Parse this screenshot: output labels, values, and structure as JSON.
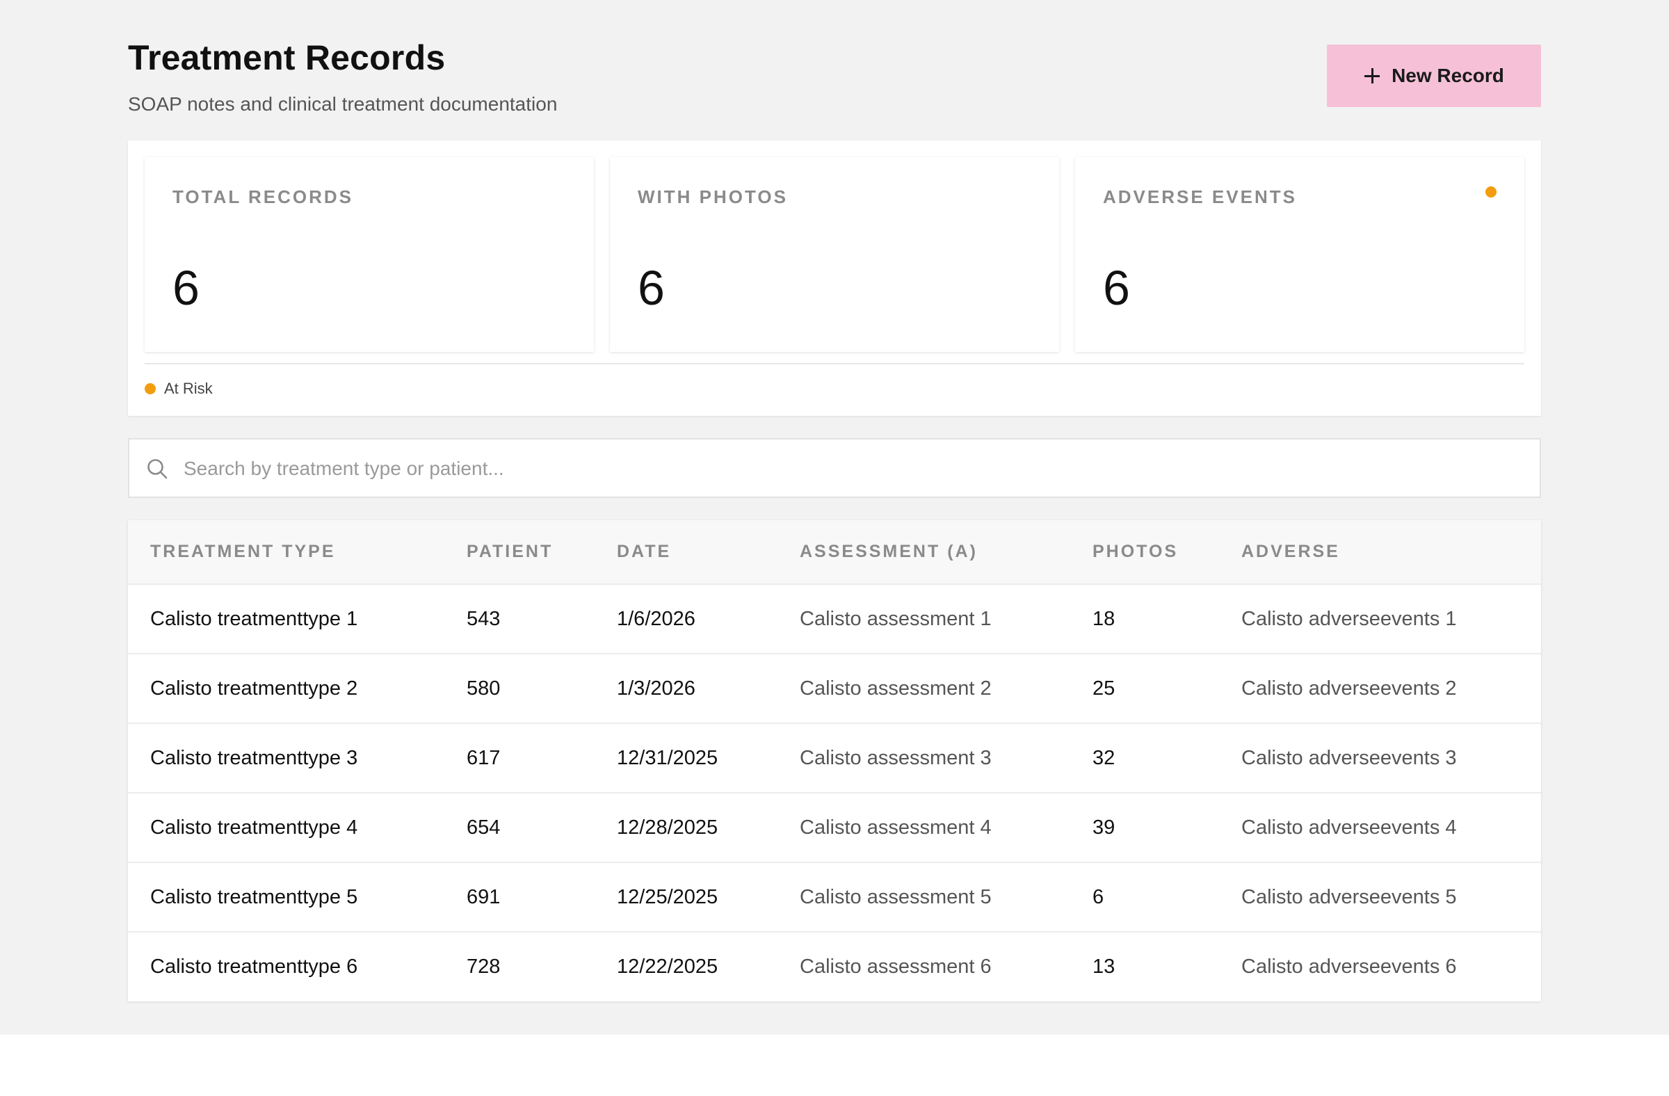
{
  "header": {
    "title": "Treatment Records",
    "subtitle": "SOAP notes and clinical treatment documentation",
    "new_record_label": "New Record"
  },
  "stats": [
    {
      "label": "TOTAL RECORDS",
      "value": "6"
    },
    {
      "label": "WITH PHOTOS",
      "value": "6"
    },
    {
      "label": "ADVERSE EVENTS",
      "value": "6",
      "status": "at-risk"
    }
  ],
  "legend": {
    "label": "At Risk",
    "color": "#f29d0e"
  },
  "search": {
    "placeholder": "Search by treatment type or patient...",
    "value": ""
  },
  "table": {
    "columns": [
      "TREATMENT TYPE",
      "PATIENT",
      "DATE",
      "ASSESSMENT (A)",
      "PHOTOS",
      "ADVERSE"
    ],
    "rows": [
      {
        "treatment_type": "Calisto treatmenttype 1",
        "patient": "543",
        "date": "1/6/2026",
        "assessment": "Calisto assessment 1",
        "photos": "18",
        "adverse": "Calisto adverseevents 1"
      },
      {
        "treatment_type": "Calisto treatmenttype 2",
        "patient": "580",
        "date": "1/3/2026",
        "assessment": "Calisto assessment 2",
        "photos": "25",
        "adverse": "Calisto adverseevents 2"
      },
      {
        "treatment_type": "Calisto treatmenttype 3",
        "patient": "617",
        "date": "12/31/2025",
        "assessment": "Calisto assessment 3",
        "photos": "32",
        "adverse": "Calisto adverseevents 3"
      },
      {
        "treatment_type": "Calisto treatmenttype 4",
        "patient": "654",
        "date": "12/28/2025",
        "assessment": "Calisto assessment 4",
        "photos": "39",
        "adverse": "Calisto adverseevents 4"
      },
      {
        "treatment_type": "Calisto treatmenttype 5",
        "patient": "691",
        "date": "12/25/2025",
        "assessment": "Calisto assessment 5",
        "photos": "6",
        "adverse": "Calisto adverseevents 5"
      },
      {
        "treatment_type": "Calisto treatmenttype 6",
        "patient": "728",
        "date": "12/22/2025",
        "assessment": "Calisto assessment 6",
        "photos": "13",
        "adverse": "Calisto adverseevents 6"
      }
    ]
  },
  "colors": {
    "accent": "#f6c1d6",
    "warning": "#f29d0e",
    "background": "#f2f2f2"
  },
  "icons": {
    "new_record": "plus-icon",
    "search": "search-icon"
  }
}
